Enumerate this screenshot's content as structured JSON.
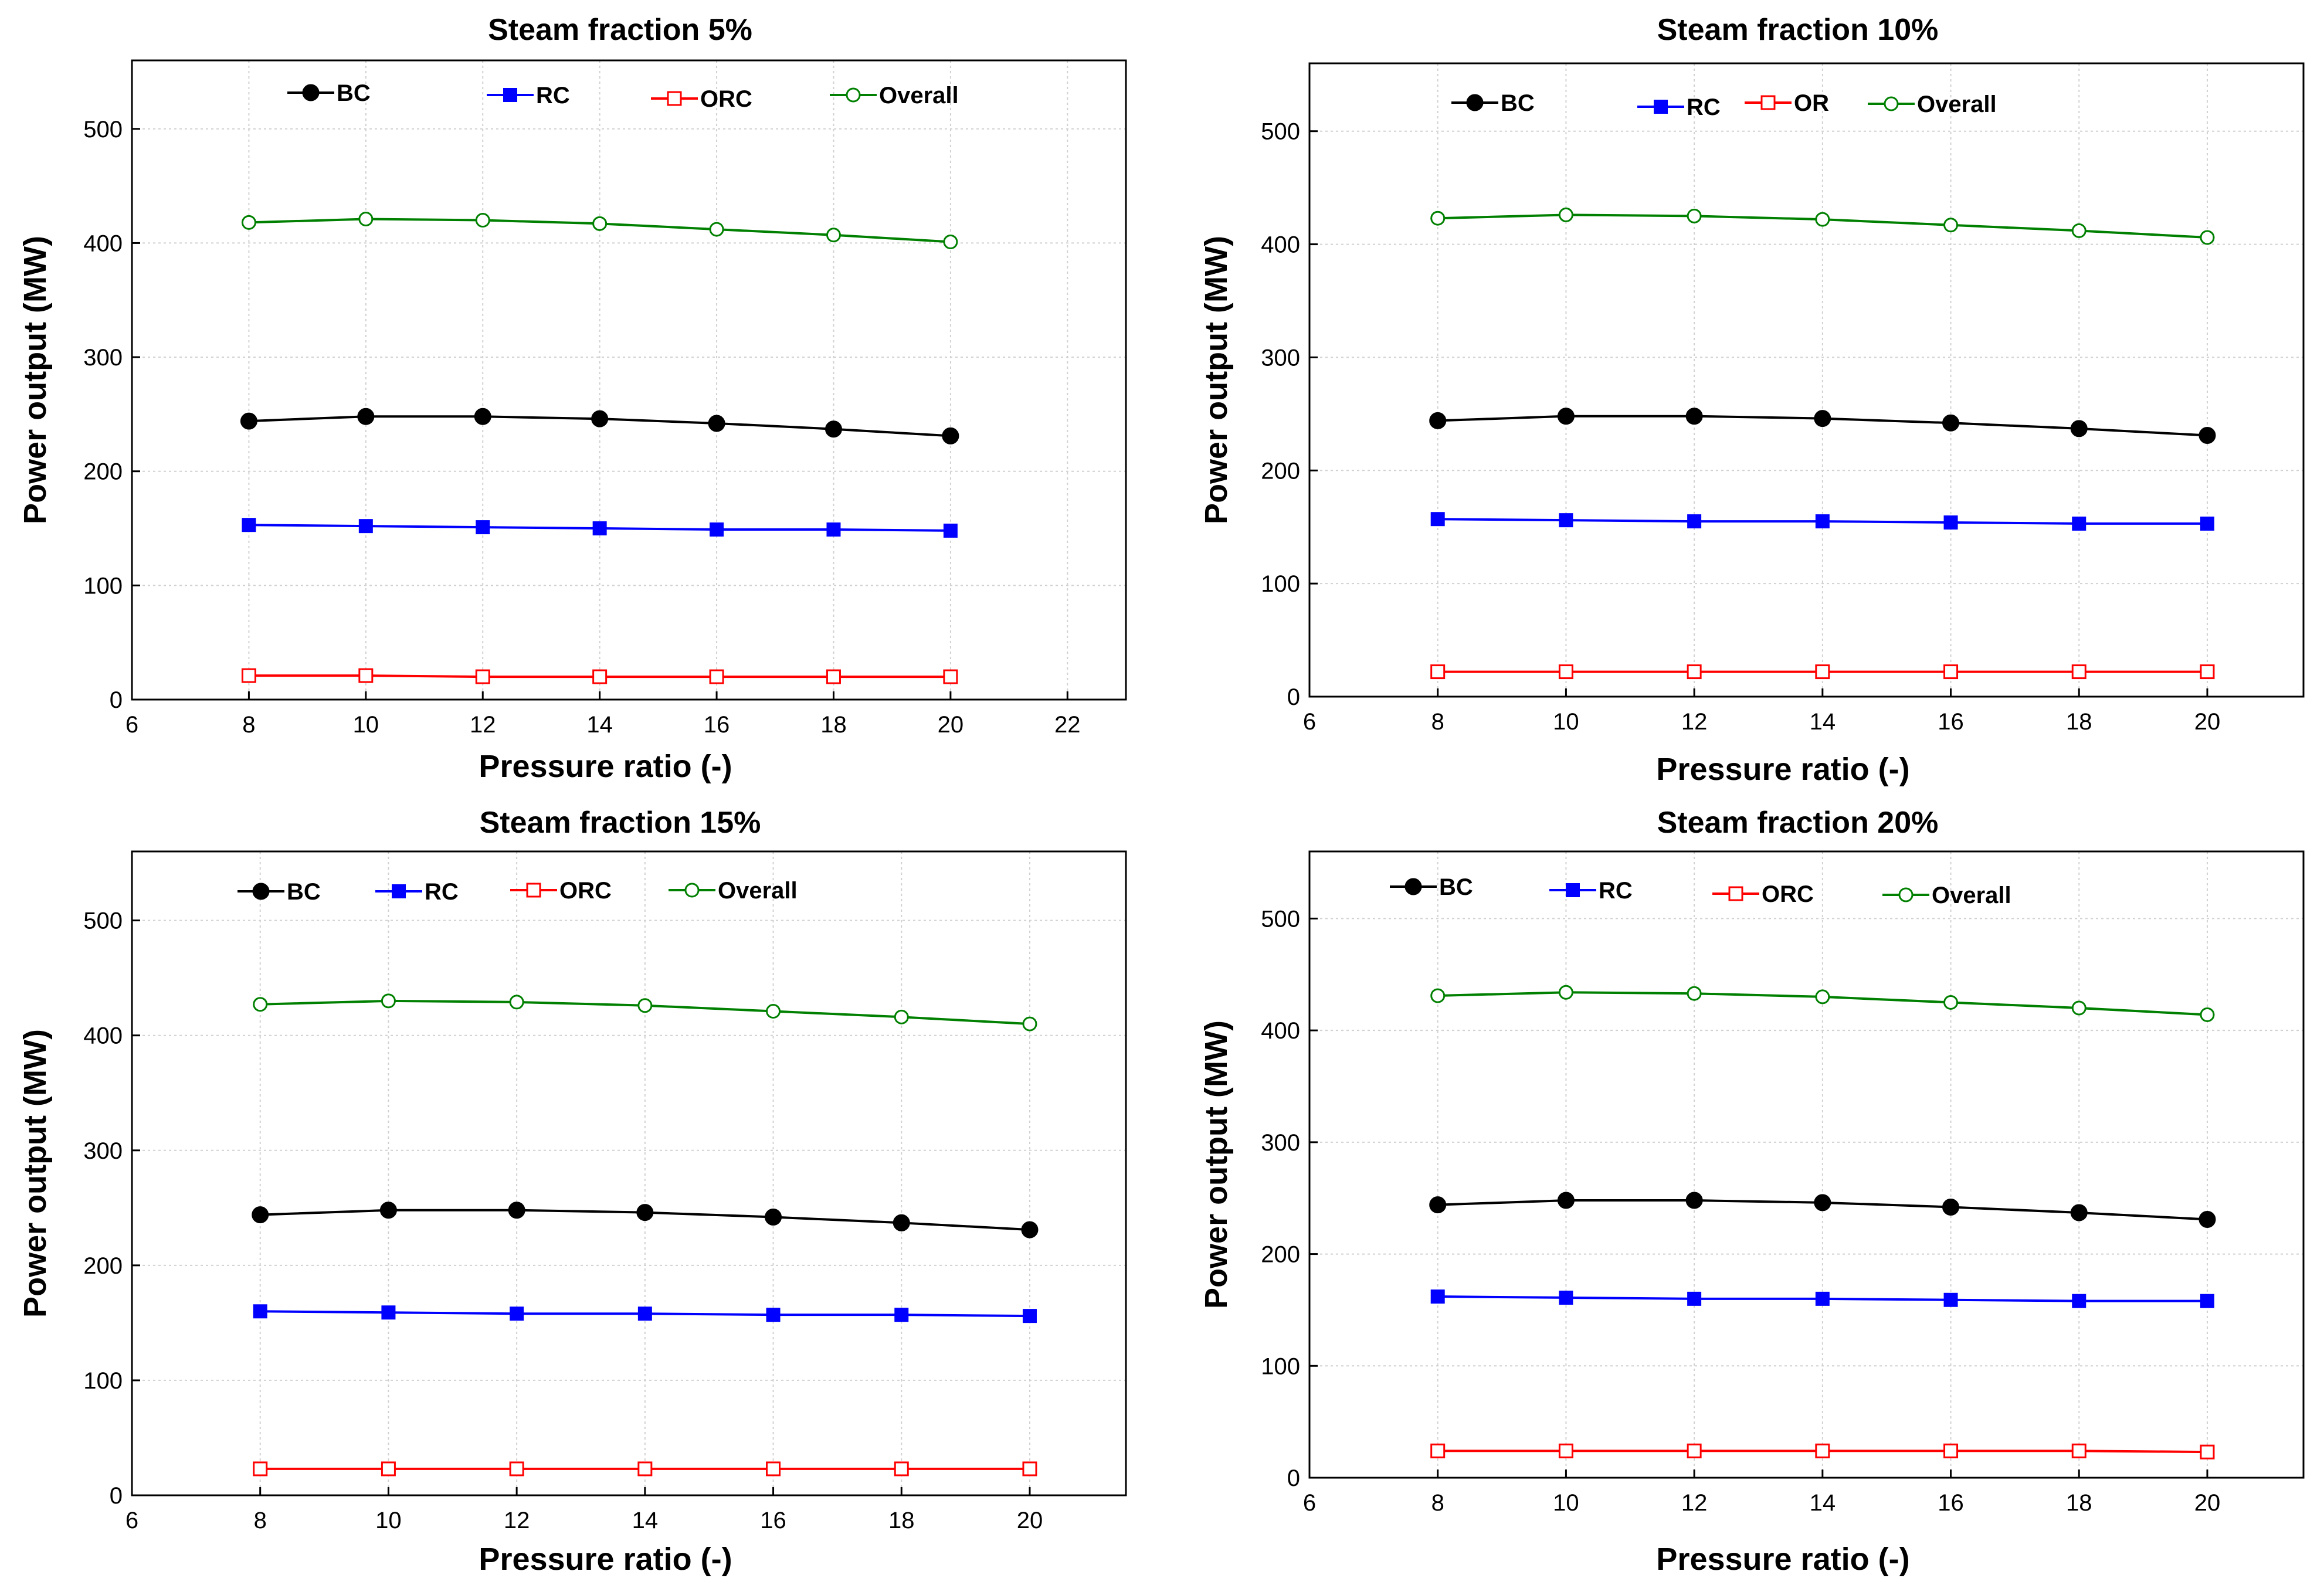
{
  "chart_data": [
    {
      "type": "line",
      "title": "Steam fraction 5%",
      "xlabel": "Pressure ratio (-)",
      "ylabel": "Power output (MW)",
      "xlim": [
        6,
        23
      ],
      "ylim": [
        0,
        560
      ],
      "xticks": [
        6,
        8,
        10,
        12,
        14,
        16,
        18,
        20,
        22
      ],
      "yticks": [
        0,
        100,
        200,
        300,
        400,
        500
      ],
      "grid": true,
      "x": [
        8,
        10,
        12,
        14,
        16,
        18,
        20
      ],
      "series": [
        {
          "name": "BC",
          "color": "#000000",
          "marker": "circle-filled",
          "values": [
            244,
            248,
            248,
            246,
            242,
            237,
            231
          ]
        },
        {
          "name": "RC",
          "color": "#0000ff",
          "marker": "square-filled",
          "values": [
            153,
            152,
            151,
            150,
            149,
            149,
            148
          ]
        },
        {
          "name": "ORC",
          "color": "#ff0000",
          "marker": "square-open",
          "values": [
            21,
            21,
            20,
            20,
            20,
            20,
            20
          ]
        },
        {
          "name": "Overall",
          "color": "#008000",
          "marker": "circle-open",
          "values": [
            418,
            421,
            420,
            417,
            412,
            407,
            401
          ]
        }
      ]
    },
    {
      "type": "line",
      "title": "Steam fraction 10%",
      "xlabel": "Pressure ratio (-)",
      "ylabel": "Power output (MW)",
      "xlim": [
        6,
        21.5
      ],
      "ylim": [
        0,
        560
      ],
      "xticks": [
        6,
        8,
        10,
        12,
        14,
        16,
        18,
        20
      ],
      "yticks": [
        0,
        100,
        200,
        300,
        400,
        500
      ],
      "grid": true,
      "x": [
        8,
        10,
        12,
        14,
        16,
        18,
        20
      ],
      "series": [
        {
          "name": "BC",
          "color": "#000000",
          "marker": "circle-filled",
          "values": [
            244,
            248,
            248,
            246,
            242,
            237,
            231
          ]
        },
        {
          "name": "RC",
          "color": "#0000ff",
          "marker": "square-filled",
          "values": [
            157,
            156,
            155,
            155,
            154,
            153,
            153
          ]
        },
        {
          "name": "OR",
          "color": "#ff0000",
          "marker": "square-open",
          "values": [
            22,
            22,
            22,
            22,
            22,
            22,
            22
          ]
        },
        {
          "name": "Overall",
          "color": "#008000",
          "marker": "circle-open",
          "values": [
            423,
            426,
            425,
            422,
            417,
            412,
            406
          ]
        }
      ]
    },
    {
      "type": "line",
      "title": "Steam fraction 15%",
      "xlabel": "Pressure ratio (-)",
      "ylabel": "Power output (MW)",
      "xlim": [
        6,
        21.5
      ],
      "ylim": [
        0,
        560
      ],
      "xticks": [
        6,
        8,
        10,
        12,
        14,
        16,
        18,
        20
      ],
      "yticks": [
        0,
        100,
        200,
        300,
        400,
        500
      ],
      "grid": true,
      "x": [
        8,
        10,
        12,
        14,
        16,
        18,
        20
      ],
      "series": [
        {
          "name": "BC",
          "color": "#000000",
          "marker": "circle-filled",
          "values": [
            244,
            248,
            248,
            246,
            242,
            237,
            231
          ]
        },
        {
          "name": "RC",
          "color": "#0000ff",
          "marker": "square-filled",
          "values": [
            160,
            159,
            158,
            158,
            157,
            157,
            156
          ]
        },
        {
          "name": "ORC",
          "color": "#ff0000",
          "marker": "square-open",
          "values": [
            23,
            23,
            23,
            23,
            23,
            23,
            23
          ]
        },
        {
          "name": "Overall",
          "color": "#008000",
          "marker": "circle-open",
          "values": [
            427,
            430,
            429,
            426,
            421,
            416,
            410
          ]
        }
      ]
    },
    {
      "type": "line",
      "title": "Steam fraction 20%",
      "xlabel": "Pressure ratio (-)",
      "ylabel": "Power output (MW)",
      "xlim": [
        6,
        21.5
      ],
      "ylim": [
        0,
        560
      ],
      "xticks": [
        6,
        8,
        10,
        12,
        14,
        16,
        18,
        20
      ],
      "yticks": [
        0,
        100,
        200,
        300,
        400,
        500
      ],
      "grid": true,
      "x": [
        8,
        10,
        12,
        14,
        16,
        18,
        20
      ],
      "series": [
        {
          "name": "BC",
          "color": "#000000",
          "marker": "circle-filled",
          "values": [
            244,
            248,
            248,
            246,
            242,
            237,
            231
          ]
        },
        {
          "name": "RC",
          "color": "#0000ff",
          "marker": "square-filled",
          "values": [
            162,
            161,
            160,
            160,
            159,
            158,
            158
          ]
        },
        {
          "name": "ORC",
          "color": "#ff0000",
          "marker": "square-open",
          "values": [
            24,
            24,
            24,
            24,
            24,
            24,
            23
          ]
        },
        {
          "name": "Overall",
          "color": "#008000",
          "marker": "circle-open",
          "values": [
            431,
            434,
            433,
            430,
            425,
            420,
            414
          ]
        }
      ]
    }
  ]
}
